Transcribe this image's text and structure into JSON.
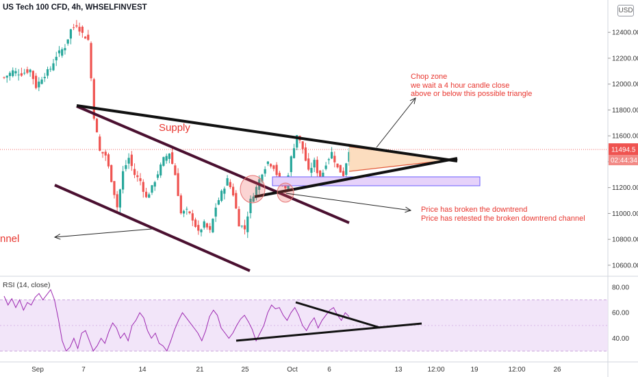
{
  "header": {
    "title": "US Tech 100 CFD, 4h, WHSELFINVEST",
    "currency_button": "USD"
  },
  "rsi_label": "RSI (14, close)",
  "annotations": {
    "chop_zone": [
      "Chop zone",
      "we wait a 4 hour candle close",
      "above or below this possible triangle"
    ],
    "downtrend": [
      "Price has broken the downtrend",
      "Price has retested the broken downtrend channel"
    ],
    "supply": "Supply",
    "channel_fragment": "nnel"
  },
  "colors": {
    "up": "#26a69a",
    "down": "#ef5350",
    "rsi_line": "#9c27b0",
    "rsi_band": "#f0e0f8",
    "annotation": "#e8362f",
    "price_tag": "#ef5350",
    "trendline": "#111111",
    "channel": "#4a1030",
    "zone_fill": "#e6d2fa",
    "triangle_fill": "#fcd9b8"
  },
  "chart_data": [
    {
      "type": "candlestick",
      "title": "US Tech 100 CFD, 4h, WHSELFINVEST",
      "xlabel": "",
      "ylabel": "",
      "x_ticks": [
        "Sep",
        "7",
        "14",
        "21",
        "25",
        "Oct",
        "6",
        "13",
        "12:00",
        "19",
        "12:00",
        "26"
      ],
      "y_ticks": [
        10600,
        10800,
        11000,
        11200,
        11400,
        11600,
        11800,
        12000,
        12200,
        12400
      ],
      "ylim": [
        10520,
        12650
      ],
      "last_price": "11494.5",
      "countdown": "02:44:34",
      "close_path": [
        [
          0,
          12050
        ],
        [
          3,
          12100
        ],
        [
          6,
          12080
        ],
        [
          9,
          12110
        ],
        [
          11,
          11980
        ],
        [
          13,
          12050
        ],
        [
          16,
          12120
        ],
        [
          18,
          12220
        ],
        [
          21,
          12290
        ],
        [
          23,
          12420
        ],
        [
          25,
          12460
        ],
        [
          27,
          12390
        ],
        [
          29,
          12340
        ],
        [
          31,
          11750
        ],
        [
          33,
          11480
        ],
        [
          35,
          11450
        ],
        [
          37,
          11260
        ],
        [
          39,
          11050
        ],
        [
          41,
          11320
        ],
        [
          43,
          11430
        ],
        [
          45,
          11300
        ],
        [
          47,
          11250
        ],
        [
          49,
          11120
        ],
        [
          51,
          11200
        ],
        [
          53,
          11310
        ],
        [
          55,
          11420
        ],
        [
          57,
          11470
        ],
        [
          59,
          11300
        ],
        [
          61,
          11000
        ],
        [
          63,
          11020
        ],
        [
          65,
          10960
        ],
        [
          67,
          10850
        ],
        [
          69,
          10920
        ],
        [
          71,
          10860
        ],
        [
          73,
          11050
        ],
        [
          75,
          11160
        ],
        [
          77,
          11260
        ],
        [
          79,
          11150
        ],
        [
          81,
          10920
        ],
        [
          83,
          10880
        ],
        [
          85,
          11100
        ],
        [
          87,
          11200
        ],
        [
          89,
          11320
        ],
        [
          91,
          11400
        ],
        [
          93,
          11360
        ],
        [
          95,
          11250
        ],
        [
          97,
          11190
        ],
        [
          99,
          11430
        ],
        [
          101,
          11610
        ],
        [
          103,
          11500
        ],
        [
          105,
          11320
        ],
        [
          107,
          11400
        ],
        [
          109,
          11250
        ],
        [
          111,
          11390
        ],
        [
          113,
          11470
        ],
        [
          115,
          11350
        ],
        [
          117,
          11300
        ],
        [
          119,
          11494
        ]
      ],
      "overlays": {
        "upper_trendline": [
          [
            11850,
            0.17
          ],
          [
            11445,
            0.88
          ]
        ],
        "support_line": [
          [
            11150,
            0.4
          ],
          [
            11455,
            0.83
          ]
        ],
        "supply_zone_range": [
          11240,
          11310
        ],
        "triangle_apex": 11445
      }
    },
    {
      "type": "line",
      "title": "RSI (14, close)",
      "y_ticks": [
        40,
        60,
        80
      ],
      "ylim": [
        22,
        88
      ],
      "band": [
        30,
        70
      ],
      "series": [
        {
          "name": "RSI (14, close)",
          "values": [
            73,
            66,
            71,
            64,
            70,
            62,
            68,
            66,
            72,
            75,
            70,
            74,
            78,
            70,
            55,
            38,
            30,
            33,
            40,
            32,
            44,
            46,
            38,
            30,
            34,
            40,
            36,
            45,
            52,
            48,
            40,
            44,
            38,
            50,
            54,
            60,
            56,
            46,
            40,
            44,
            36,
            34,
            30,
            38,
            47,
            54,
            60,
            56,
            52,
            48,
            44,
            38,
            46,
            57,
            62,
            58,
            48,
            44,
            40,
            44,
            50,
            55,
            58,
            53,
            47,
            38,
            44,
            50,
            60,
            66,
            63,
            64,
            58,
            54,
            60,
            64,
            58,
            50,
            46,
            52,
            56,
            48,
            54,
            58,
            62,
            64,
            58,
            54,
            60,
            57
          ]
        }
      ]
    }
  ]
}
